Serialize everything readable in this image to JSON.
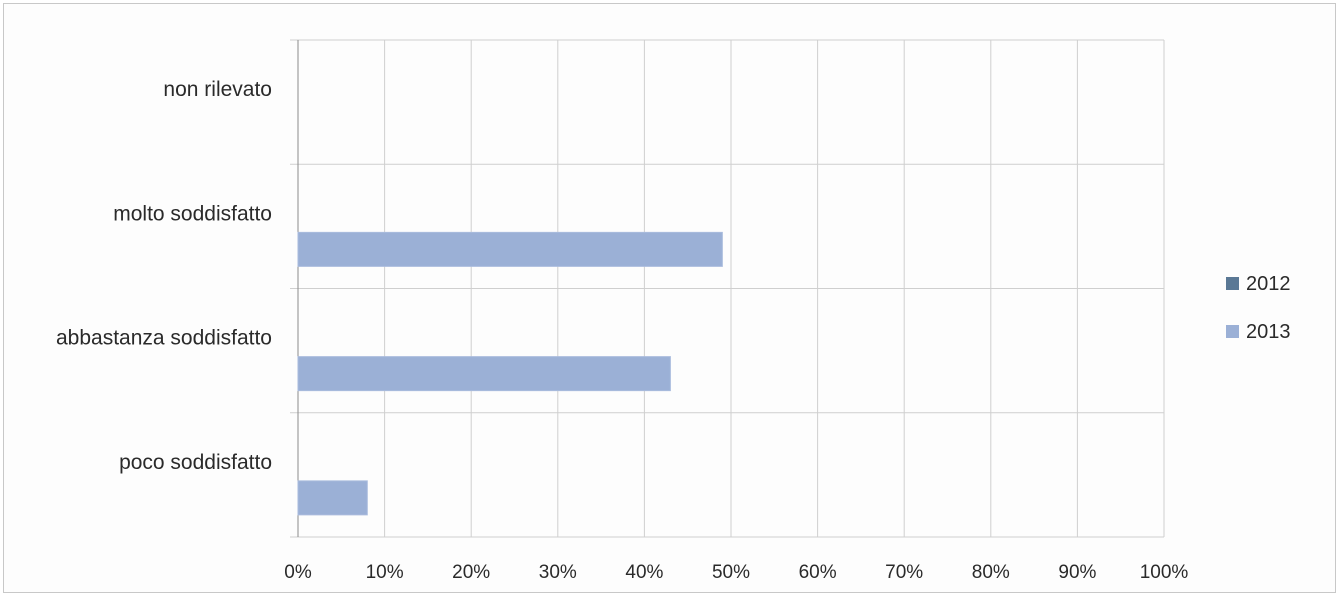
{
  "chart_data": {
    "type": "bar",
    "orientation": "horizontal",
    "categories": [
      "poco soddisfatto",
      "abbastanza soddisfatto",
      "molto soddisfatto",
      "non rilevato"
    ],
    "series": [
      {
        "name": "2012",
        "values": [
          0,
          0,
          0,
          0
        ],
        "color": "#5a7895"
      },
      {
        "name": "2013",
        "values": [
          8,
          43,
          49,
          0
        ],
        "color": "#9bb0d6"
      }
    ],
    "xlim": [
      0,
      100
    ],
    "x_ticks": [
      "0%",
      "10%",
      "20%",
      "30%",
      "40%",
      "50%",
      "60%",
      "70%",
      "80%",
      "90%",
      "100%"
    ],
    "grid": true,
    "legend_position": "right",
    "title": "",
    "xlabel": "",
    "ylabel": ""
  }
}
